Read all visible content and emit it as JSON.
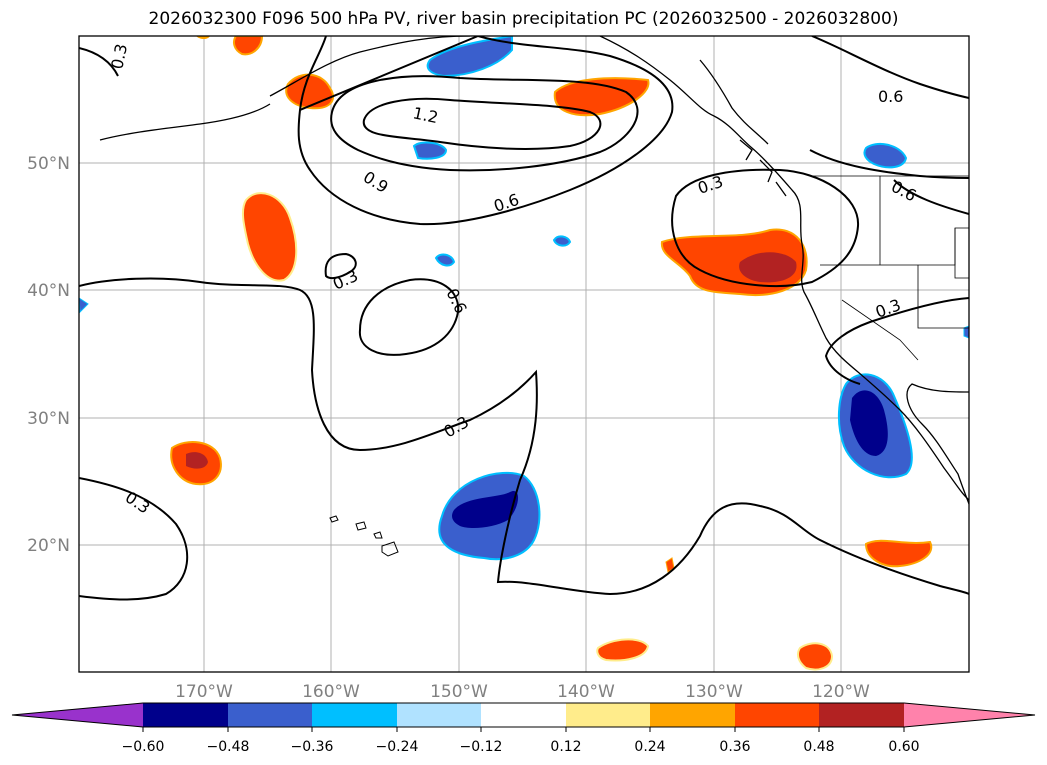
{
  "title": "2026032300 F096 500 hPa PV, river basin precipitation PC (2026032500 - 2026032800)",
  "map": {
    "lat_labels": [
      "50°N",
      "40°N",
      "30°N",
      "20°N"
    ],
    "lon_labels": [
      "170°W",
      "160°W",
      "150°W",
      "140°W",
      "130°W",
      "120°W"
    ],
    "contour_labels": [
      "0.3",
      "1.2",
      "0.9",
      "0.6",
      "0.6",
      "0.3",
      "0.6",
      "0.3",
      "0.3",
      "0.3",
      "0.6",
      "0.3"
    ]
  },
  "colorbar": {
    "ticks": [
      "−0.60",
      "−0.48",
      "−0.36",
      "−0.24",
      "−0.12",
      "0.12",
      "0.24",
      "0.36",
      "0.48",
      "0.60"
    ],
    "colors": [
      "#9932cc",
      "#00008b",
      "#3a5fcd",
      "#00bfff",
      "#b0e2ff",
      "#ffffff",
      "#ffec8b",
      "#ffa500",
      "#ff4500",
      "#b22222",
      "#ff82ab"
    ]
  }
}
